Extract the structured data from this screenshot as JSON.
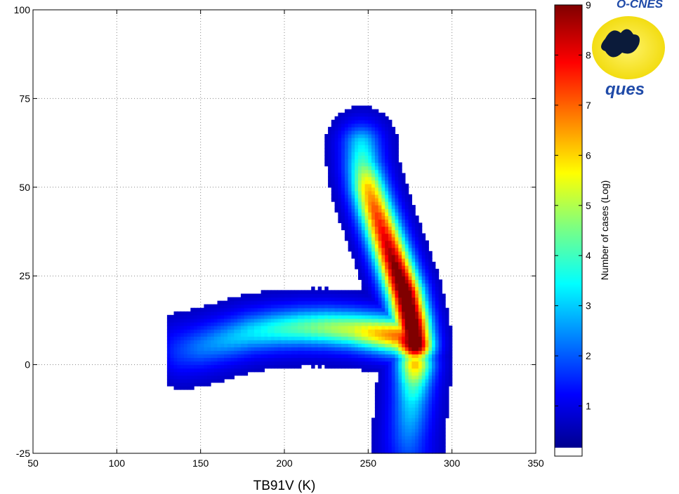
{
  "chart_data": {
    "type": "heatmap",
    "xlabel": "TB91V (K)",
    "ylabel": "",
    "xlim": [
      50,
      350
    ],
    "ylim": [
      -25,
      100
    ],
    "xticks": [
      50,
      100,
      150,
      200,
      250,
      300,
      350
    ],
    "yticks": [
      -25,
      0,
      25,
      50,
      75,
      100
    ],
    "grid": true,
    "colorbar": {
      "label": "Number of cases (Log)",
      "range": [
        0,
        9
      ],
      "ticks": [
        1,
        2,
        3,
        4,
        5,
        6,
        7,
        8,
        9
      ],
      "colormap": "jet"
    },
    "ridges": [
      {
        "name": "upper branch",
        "x": [
          278,
          276,
          272,
          266,
          260,
          254,
          250,
          247,
          246
        ],
        "y": [
          6,
          12,
          20,
          28,
          36,
          44,
          50,
          56,
          62
        ],
        "peak": [
          9,
          9,
          9,
          8,
          7,
          6,
          5,
          3,
          2
        ]
      },
      {
        "name": "lower-left branch",
        "x": [
          278,
          270,
          255,
          240,
          225,
          210,
          195,
          180,
          165,
          150,
          140
        ],
        "y": [
          6,
          8,
          9,
          10,
          10.5,
          10.5,
          10,
          9,
          7,
          5,
          4
        ],
        "peak": [
          9,
          6,
          5,
          4,
          3.5,
          3,
          2.5,
          2,
          1.5,
          1,
          0.5
        ]
      },
      {
        "name": "lower tail",
        "x": [
          278,
          277,
          276,
          275,
          274,
          274
        ],
        "y": [
          0,
          -5,
          -10,
          -15,
          -20,
          -25
        ],
        "peak": [
          5,
          3,
          2,
          1.5,
          1,
          0.5
        ]
      }
    ]
  },
  "logo": {
    "text_top": "O-CNES",
    "text_bottom": "ques"
  },
  "colors": {
    "background": "#ffffff",
    "grid": "#808080",
    "logo_yellow": "#f5e61a",
    "logo_blue": "#1f4aa8"
  }
}
